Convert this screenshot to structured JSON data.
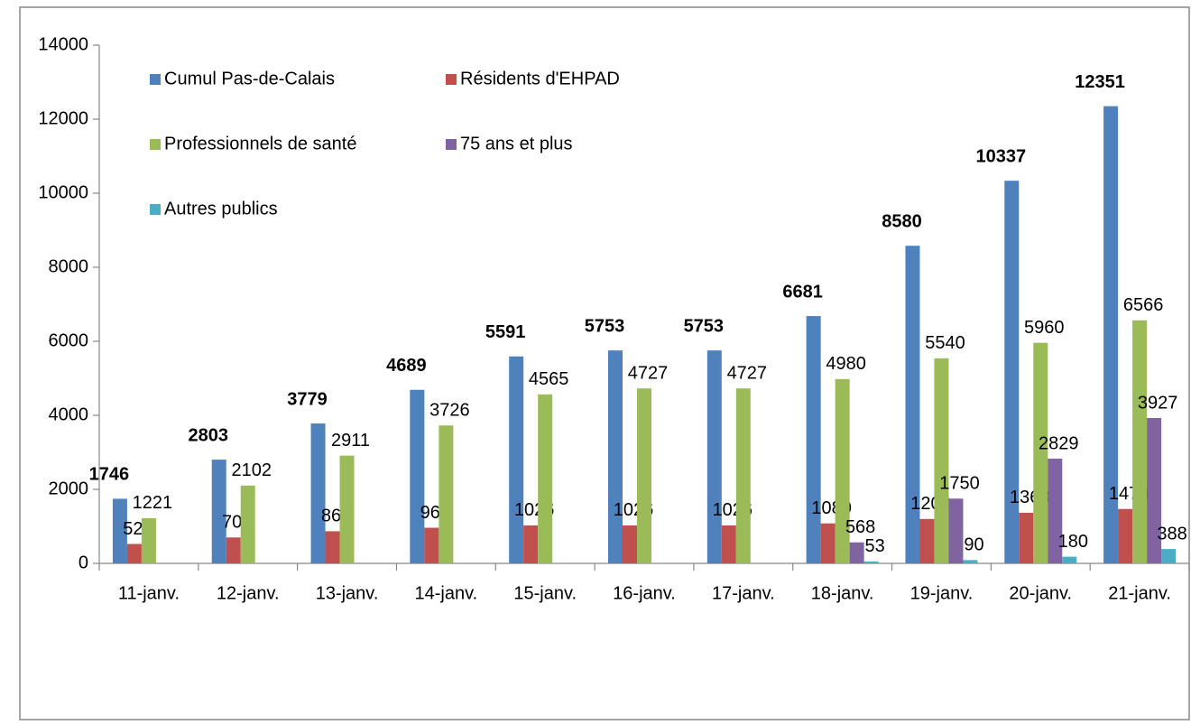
{
  "chart_data": {
    "type": "bar",
    "categories": [
      "11-janv.",
      "12-janv.",
      "13-janv.",
      "14-janv.",
      "15-janv.",
      "16-janv.",
      "17-janv.",
      "18-janv.",
      "19-janv.",
      "20-janv.",
      "21-janv."
    ],
    "series": [
      {
        "name": "Cumul Pas-de-Calais",
        "color": "#4f81bd",
        "values": [
          1746,
          2803,
          3779,
          4689,
          5591,
          5753,
          5753,
          6681,
          8580,
          10337,
          12351
        ]
      },
      {
        "name": "Résidents d'EHPAD",
        "color": "#c0504d",
        "values": [
          525,
          701,
          868,
          963,
          1026,
          1026,
          1026,
          1080,
          1200,
          1368,
          1470
        ]
      },
      {
        "name": "Professionnels de santé",
        "color": "#9bbb59",
        "values": [
          1221,
          2102,
          2911,
          3726,
          4565,
          4727,
          4727,
          4980,
          5540,
          5960,
          6566
        ]
      },
      {
        "name": "75 ans et plus",
        "color": "#8064a2",
        "values": [
          null,
          null,
          null,
          null,
          null,
          null,
          null,
          568,
          1750,
          2829,
          3927
        ]
      },
      {
        "name": "Autres publics",
        "color": "#4bacc6",
        "values": [
          null,
          null,
          null,
          null,
          null,
          null,
          null,
          53,
          90,
          180,
          388
        ]
      }
    ],
    "ylim": [
      0,
      14000
    ],
    "yticks": [
      0,
      2000,
      4000,
      6000,
      8000,
      10000,
      12000,
      14000
    ]
  }
}
